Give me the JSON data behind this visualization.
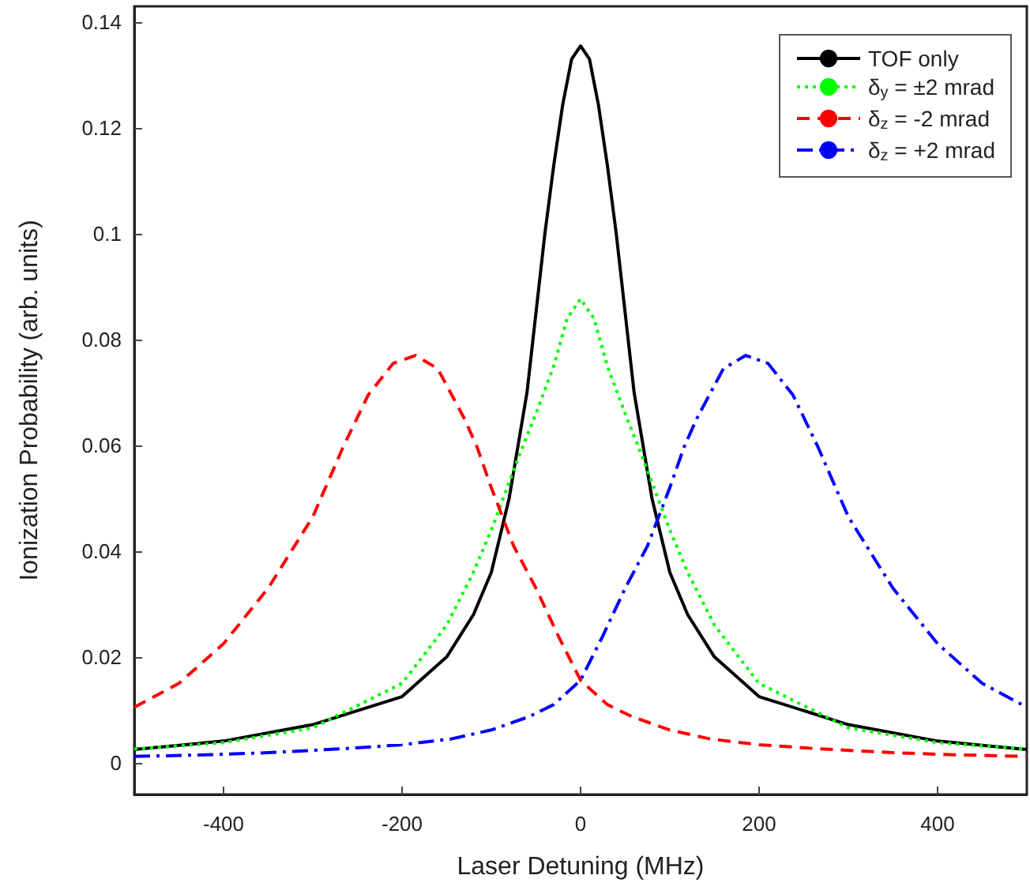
{
  "chart_data": {
    "type": "line",
    "xlabel": "Laser Detuning (MHz)",
    "ylabel": "Ionization Probability (arb. units)",
    "xlim": [
      -500,
      500
    ],
    "xticks": [
      -400,
      -200,
      0,
      200,
      400
    ],
    "ylim": [
      -0.006,
      0.143
    ],
    "yticks": [
      0,
      0.02,
      0.04,
      0.06,
      0.08,
      0.1,
      0.12,
      0.14
    ],
    "grid": false,
    "legend": "top right",
    "marker": "none",
    "series": [
      {
        "name": "TOF only",
        "color": "#000000",
        "line_style": "solid",
        "x": [
          -500,
          -400,
          -300,
          -200,
          -150,
          -120,
          -100,
          -80,
          -60,
          -40,
          -30,
          -20,
          -10,
          0,
          10,
          20,
          30,
          40,
          60,
          80,
          100,
          120,
          150,
          200,
          300,
          400,
          500
        ],
        "values": [
          0.0025,
          0.0041,
          0.0072,
          0.0125,
          0.02,
          0.028,
          0.036,
          0.05,
          0.07,
          0.1,
          0.113,
          0.1244,
          0.133,
          0.1355,
          0.133,
          0.1244,
          0.113,
          0.1,
          0.07,
          0.05,
          0.036,
          0.028,
          0.02,
          0.0125,
          0.0072,
          0.0041,
          0.0025
        ]
      },
      {
        "name": "δ$_{y}$ = ±2 mrad",
        "color": "#00ff00",
        "line_style": "dotted",
        "x": [
          -500,
          -400,
          -300,
          -200,
          -150,
          -120,
          -100,
          -70,
          -50,
          -30,
          -15,
          0,
          15,
          30,
          50,
          70,
          100,
          120,
          150,
          200,
          300,
          400,
          500
        ],
        "values": [
          0.0026,
          0.0038,
          0.0066,
          0.015,
          0.026,
          0.036,
          0.044,
          0.0575,
          0.066,
          0.075,
          0.084,
          0.0877,
          0.084,
          0.075,
          0.066,
          0.0575,
          0.044,
          0.036,
          0.026,
          0.015,
          0.0066,
          0.0038,
          0.0026
        ]
      },
      {
        "name": "δ$_{z}$ = -2 mrad",
        "color": "#ff0000",
        "line_style": "dashed",
        "x": [
          -500,
          -450,
          -400,
          -350,
          -300,
          -266,
          -238,
          -210,
          -185,
          -160,
          -130,
          -116,
          -100,
          -75,
          -50,
          -25,
          0,
          30,
          58,
          100,
          145,
          200,
          261,
          350,
          420,
          500
        ],
        "values": [
          0.0105,
          0.015,
          0.0225,
          0.033,
          0.0465,
          0.0597,
          0.0695,
          0.0755,
          0.077,
          0.0745,
          0.065,
          0.0597,
          0.052,
          0.041,
          0.033,
          0.024,
          0.0156,
          0.011,
          0.0087,
          0.0062,
          0.0045,
          0.0034,
          0.0027,
          0.0019,
          0.0015,
          0.0012
        ]
      },
      {
        "name": "δ$_{z}$ = +2 mrad",
        "color": "#0000ff",
        "line_style": "dashdot",
        "x": [
          -500,
          -420,
          -350,
          -261,
          -200,
          -145,
          -100,
          -58,
          -30,
          0,
          25,
          50,
          75,
          100,
          116,
          130,
          160,
          185,
          210,
          238,
          266,
          300,
          350,
          400,
          450,
          500
        ],
        "values": [
          0.0012,
          0.0015,
          0.0019,
          0.0027,
          0.0034,
          0.0045,
          0.0062,
          0.0087,
          0.011,
          0.0156,
          0.024,
          0.033,
          0.041,
          0.052,
          0.0597,
          0.065,
          0.0745,
          0.077,
          0.0755,
          0.0695,
          0.0597,
          0.0465,
          0.033,
          0.0225,
          0.015,
          0.0105
        ]
      }
    ]
  }
}
